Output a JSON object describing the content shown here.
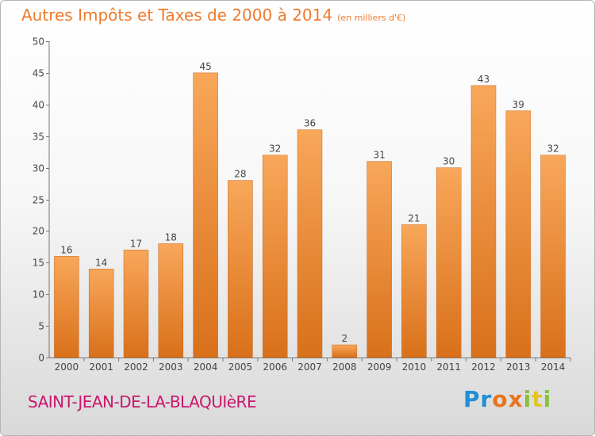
{
  "title": "Autres Impôts et Taxes de 2000 à 2014",
  "subtitle": "(en milliers d'€)",
  "commune": "SAINT-JEAN-DE-LA-BLAQUIèRE",
  "logo": {
    "text": "Proxiti",
    "colors": [
      "#1f8fd6",
      "#1f8fd6",
      "#e8741e",
      "#e8741e",
      "#8ac13b",
      "#e3c51c",
      "#8ac13b"
    ]
  },
  "colors": {
    "bar_top": "#f8a75a",
    "bar_bottom": "#d9701a",
    "bar_edge": "#c86a1c",
    "title": "#ee7a2c",
    "commune": "#c9176e"
  },
  "chart_data": {
    "type": "bar",
    "categories": [
      "2000",
      "2001",
      "2002",
      "2003",
      "2004",
      "2005",
      "2006",
      "2007",
      "2008",
      "2009",
      "2010",
      "2011",
      "2012",
      "2013",
      "2014"
    ],
    "values": [
      16,
      14,
      17,
      18,
      45,
      28,
      32,
      36,
      2,
      31,
      21,
      30,
      43,
      39,
      32
    ],
    "title": "Autres Impôts et Taxes de 2000 à 2014",
    "subtitle": "(en milliers d'€)",
    "xlabel": "",
    "ylabel": "",
    "ylim": [
      0,
      50
    ],
    "yticks": [
      0,
      5,
      10,
      15,
      20,
      25,
      30,
      35,
      40,
      45,
      50
    ],
    "grid": false,
    "data_labels": true
  }
}
